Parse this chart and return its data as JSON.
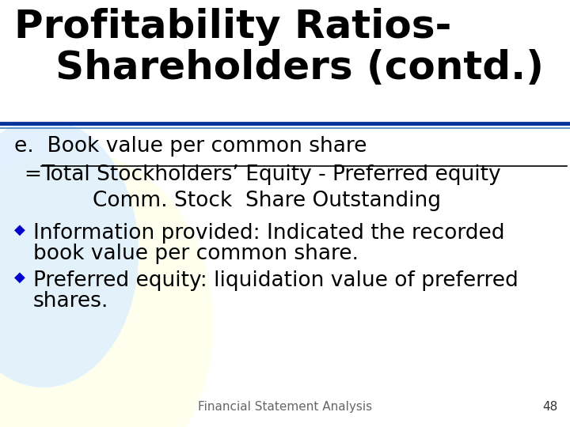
{
  "title_line1": "Profitability Ratios-",
  "title_line2": "   Shareholders (contd.)",
  "title_fontsize": 36,
  "title_color": "#000000",
  "separator_color_top": "#003399",
  "separator_color_bottom": "#6699CC",
  "body_text_color": "#000000",
  "body_fontsize": 19,
  "bullet_color": "#0000CC",
  "footer_text": "Financial Statement Analysis",
  "footer_number": "48",
  "footer_fontsize": 11,
  "bg_color": "#FFFFFF",
  "circle_color": "#DDEEFF",
  "yellow_color": "#FFFFEE",
  "e_label": "e.  Book value per common share",
  "fraction_numerator": "Total Stockholders’ Equity - Preferred equity",
  "fraction_denominator": "Comm. Stock  Share Outstanding",
  "equals_sign": "=",
  "bullet1_line1": "Information provided: Indicated the recorded",
  "bullet1_line2": "book value per common share.",
  "bullet2_line1": "Preferred equity: liquidation value of preferred",
  "bullet2_line2": "shares."
}
